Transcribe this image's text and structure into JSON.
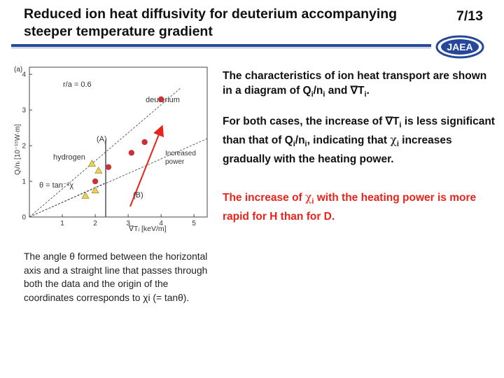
{
  "slide": {
    "title": "Reduced ion heat diffusivity for deuterium accompanying steeper temperature gradient",
    "page_number": "7/13",
    "logo_text": "JAEA",
    "colors": {
      "rule": "#26489a",
      "accent_red": "#e8231b",
      "point_red": "#c8323a",
      "point_yellow": "#e8d35a"
    }
  },
  "figure": {
    "panel_label": "(a)",
    "condition": "r/a = 0.6",
    "label_deuterium": "deuterium",
    "label_hydrogen": "hydrogen",
    "label_A": "(A)",
    "label_B": "(B)",
    "angle_label": "θ = tan⁻¹χ",
    "increased_label_1": "Increased",
    "increased_label_2": "power",
    "ylabel": "Qᵢ/nᵢ [10⁻¹⁵W·m]",
    "xlabel": "∇Tᵢ [keV/m]",
    "y_ticks": [
      "0",
      "1",
      "2",
      "3",
      "4"
    ],
    "x_ticks": [
      "1",
      "2",
      "3",
      "4",
      "5"
    ]
  },
  "caption": "The angle θ formed between the horizontal axis and a straight line that passes through both the data and the origin of the coordinates corresponds to χi (= tanθ).",
  "right_text": {
    "p1": {
      "a": "The characteristics of ion heat transport are shown in a diagram of Q",
      "b": "/n",
      "c": " and ∇T",
      "d": "."
    },
    "p2": {
      "a": "For both cases, the increase of ∇T",
      "b": " is less significant than that of Q",
      "c": "/n",
      "d": ", indicating that ",
      "e": "χ",
      "f": " increases gradually with the heating power."
    },
    "p3": {
      "a": "The increase of ",
      "b": "χ",
      "c": " with the heating power is more rapid for H than for D."
    },
    "sub_i": "i"
  },
  "chart_data": {
    "type": "scatter",
    "title": "",
    "xlabel": "∇Tᵢ [keV/m]",
    "ylabel": "Qᵢ/nᵢ [10⁻¹⁵W·m]",
    "xlim": [
      0,
      5.4
    ],
    "ylim": [
      0,
      4.2
    ],
    "series": [
      {
        "name": "deuterium",
        "points": [
          [
            2.0,
            1.0
          ],
          [
            2.4,
            1.4
          ],
          [
            3.1,
            1.8
          ],
          [
            3.5,
            2.1
          ],
          [
            4.0,
            3.3
          ]
        ]
      },
      {
        "name": "hydrogen",
        "points": [
          [
            1.7,
            0.6
          ],
          [
            2.0,
            0.75
          ],
          [
            2.1,
            1.3
          ],
          [
            1.9,
            1.5
          ]
        ]
      }
    ]
  }
}
